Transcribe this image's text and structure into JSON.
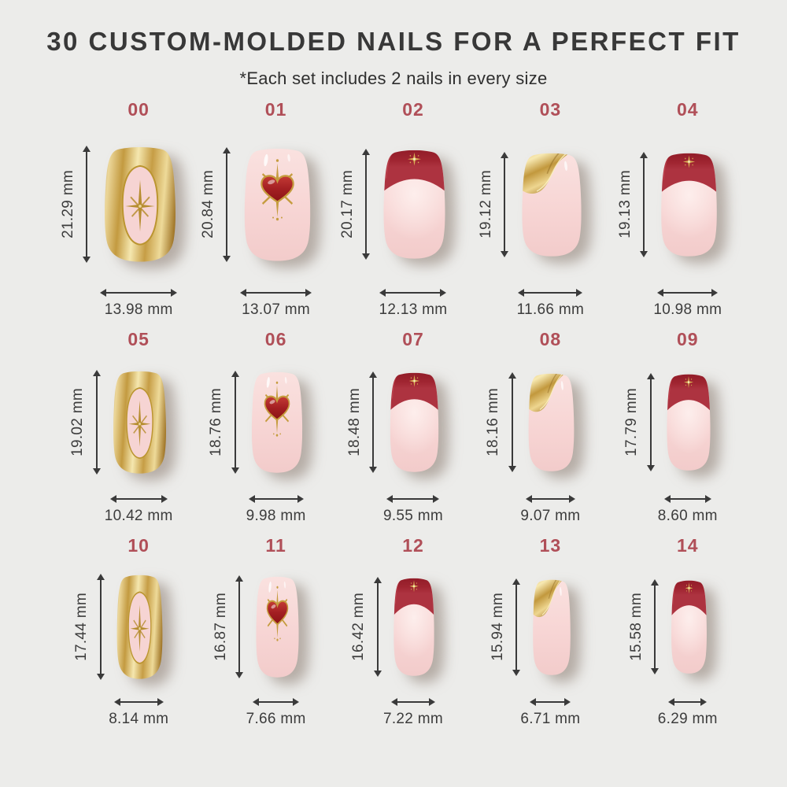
{
  "page": {
    "title": "30 CUSTOM-MOLDED NAILS FOR A PERFECT FIT",
    "subtitle": "*Each set includes 2 nails in every size",
    "units": "mm"
  },
  "colors": {
    "background": "#ececea",
    "title_text": "#383838",
    "subtitle_text": "#2e2e2e",
    "size_number": "#b04f58",
    "measurement_text": "#3c3c3c",
    "dimension_line": "#3a3a3a",
    "nail_pink": "#f7d5d4",
    "nail_pink_light": "#fae2e0",
    "french_tip_red": "#a02531",
    "heart_red": "#a31f22",
    "gold": "#c69d45",
    "gold_light": "#f5e7af",
    "gold_dark": "#a87c2e"
  },
  "nails": [
    {
      "id": "00",
      "height_mm": 21.29,
      "width_mm": 13.98,
      "height_label": "21.29 mm",
      "width_label": "13.98 mm",
      "design": "gold-chrome-star"
    },
    {
      "id": "01",
      "height_mm": 20.84,
      "width_mm": 13.07,
      "height_label": "20.84 mm",
      "width_label": "13.07 mm",
      "design": "heart-charm"
    },
    {
      "id": "02",
      "height_mm": 20.17,
      "width_mm": 12.13,
      "height_label": "20.17 mm",
      "width_label": "12.13 mm",
      "design": "red-french-star"
    },
    {
      "id": "03",
      "height_mm": 19.12,
      "width_mm": 11.66,
      "height_label": "19.12 mm",
      "width_label": "11.66 mm",
      "design": "gold-foil"
    },
    {
      "id": "04",
      "height_mm": 19.13,
      "width_mm": 10.98,
      "height_label": "19.13 mm",
      "width_label": "10.98 mm",
      "design": "red-french-star"
    },
    {
      "id": "05",
      "height_mm": 19.02,
      "width_mm": 10.42,
      "height_label": "19.02 mm",
      "width_label": "10.42 mm",
      "design": "gold-chrome-star"
    },
    {
      "id": "06",
      "height_mm": 18.76,
      "width_mm": 9.98,
      "height_label": "18.76 mm",
      "width_label": "9.98 mm",
      "design": "heart-charm"
    },
    {
      "id": "07",
      "height_mm": 18.48,
      "width_mm": 9.55,
      "height_label": "18.48 mm",
      "width_label": "9.55 mm",
      "design": "red-french-star"
    },
    {
      "id": "08",
      "height_mm": 18.16,
      "width_mm": 9.07,
      "height_label": "18.16 mm",
      "width_label": "9.07 mm",
      "design": "gold-foil"
    },
    {
      "id": "09",
      "height_mm": 17.79,
      "width_mm": 8.6,
      "height_label": "17.79 mm",
      "width_label": "8.60 mm",
      "design": "red-french-star"
    },
    {
      "id": "10",
      "height_mm": 17.44,
      "width_mm": 8.14,
      "height_label": "17.44 mm",
      "width_label": "8.14 mm",
      "design": "gold-chrome-star"
    },
    {
      "id": "11",
      "height_mm": 16.87,
      "width_mm": 7.66,
      "height_label": "16.87 mm",
      "width_label": "7.66 mm",
      "design": "heart-charm"
    },
    {
      "id": "12",
      "height_mm": 16.42,
      "width_mm": 7.22,
      "height_label": "16.42 mm",
      "width_label": "7.22 mm",
      "design": "red-french-star"
    },
    {
      "id": "13",
      "height_mm": 15.94,
      "width_mm": 6.71,
      "height_label": "15.94 mm",
      "width_label": "6.71 mm",
      "design": "gold-foil"
    },
    {
      "id": "14",
      "height_mm": 15.58,
      "width_mm": 6.29,
      "height_label": "15.58 mm",
      "width_label": "6.29 mm",
      "design": "red-french-star"
    }
  ]
}
